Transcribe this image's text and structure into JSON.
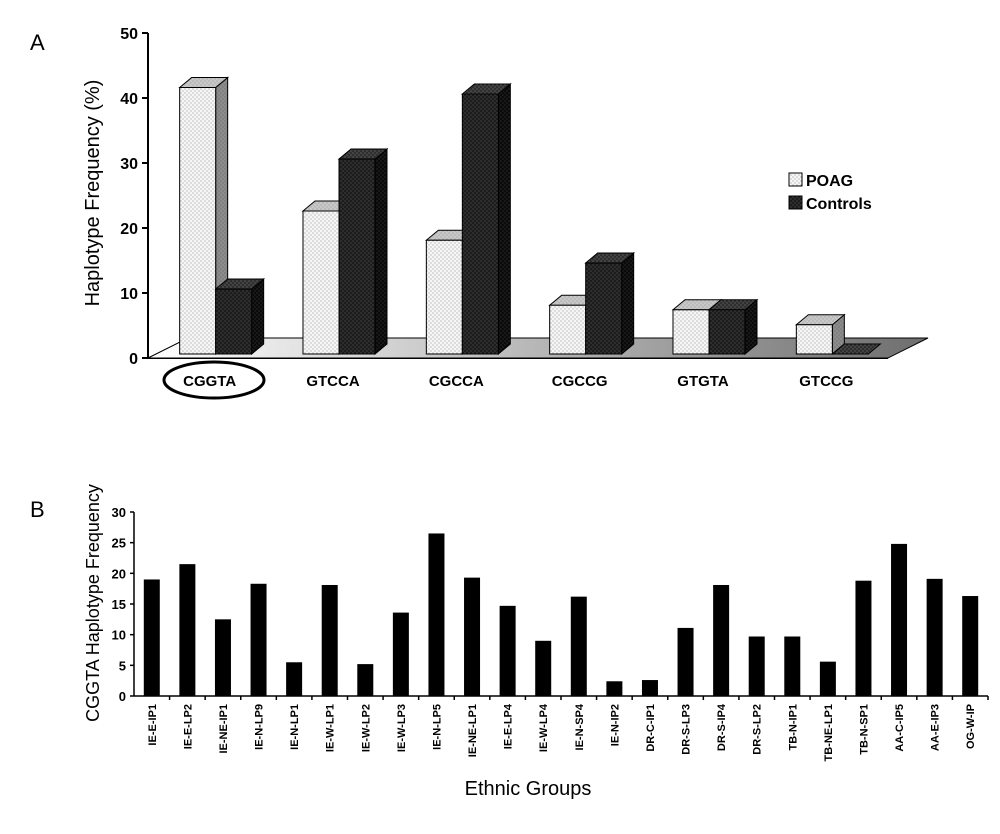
{
  "chart_data": [
    {
      "type": "bar",
      "panel_label": "A",
      "ylabel": "Haplotype Frequency (%)",
      "xlabel": "",
      "ylim": [
        0,
        50
      ],
      "yticks": [
        "0",
        "10",
        "20",
        "30",
        "40",
        "50"
      ],
      "categories": [
        "CGGTA",
        "GTCCA",
        "CGCCA",
        "CGCCG",
        "GTGTA",
        "GTCCG"
      ],
      "highlighted_category": "CGGTA",
      "series": [
        {
          "name": "POAG",
          "values": [
            41,
            22,
            17.5,
            7.5,
            6.8,
            4.5
          ],
          "color": "#f4f4f4"
        },
        {
          "name": "Controls",
          "values": [
            10,
            30,
            40,
            14,
            6.8,
            0
          ],
          "color": "#1a1a1a"
        }
      ],
      "legend_position": "right",
      "style": "3d-bar"
    },
    {
      "type": "bar",
      "panel_label": "B",
      "ylabel": "CGGTA Haplotype Frequency",
      "xlabel": "Ethnic Groups",
      "ylim": [
        0,
        30
      ],
      "yticks": [
        "0",
        "5",
        "10",
        "15",
        "20",
        "25",
        "30"
      ],
      "categories": [
        "IE-E-IP1",
        "IE-E-LP2",
        "IE-NE-IP1",
        "IE-N-LP9",
        "IE-N-LP1",
        "IE-W-LP1",
        "IE-W-LP2",
        "IE-W-LP3",
        "IE-N-LP5",
        "IE-NE-LP1",
        "IE-E-LP4",
        "IE-W-LP4",
        "IE-N-SP4",
        "IE-N-IP2",
        "DR-C-IP1",
        "DR-S-LP3",
        "DR-S-IP4",
        "DR-S-LP2",
        "TB-N-IP1",
        "TB-NE-LP1",
        "TB-N-SP1",
        "AA-C-IP5",
        "AA-E-IP3",
        "OG-W-IP"
      ],
      "values": [
        19,
        21.5,
        12.5,
        18.3,
        5.5,
        18.1,
        5.2,
        13.6,
        26.5,
        19.3,
        14.7,
        9,
        16.2,
        2.4,
        2.6,
        11.1,
        18.1,
        9.7,
        9.7,
        5.6,
        18.8,
        24.8,
        19.1,
        16.3
      ],
      "color": "#000000"
    }
  ]
}
